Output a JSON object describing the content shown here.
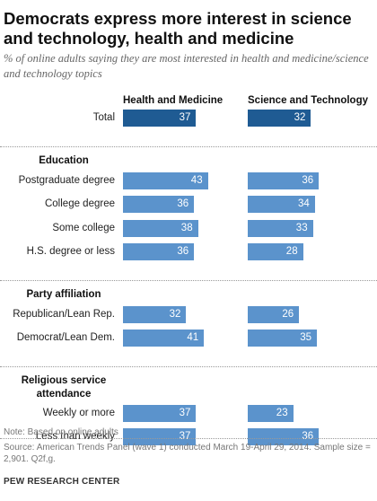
{
  "title": "Democrats express more interest in science and technology, health and medicine",
  "subtitle": "% of online adults saying they are most interested in health and medicine/science and technology  topics",
  "note": "Note: Based on online adults",
  "source": "Source: American Trends Panel (wave 1) conducted March 19-April 29, 2014. Sample size = 2,901. Q2f,g.",
  "org": "PEW RESEARCH CENTER",
  "colors": {
    "total_bar": "#1f5b93",
    "bar": "#5b93cc",
    "value_text": "#ffffff"
  },
  "chart_data": {
    "type": "bar",
    "orientation": "horizontal",
    "series": [
      {
        "name": "Health and Medicine"
      },
      {
        "name": "Science and Technology"
      }
    ],
    "groups": [
      {
        "label": "",
        "rows": [
          {
            "label": "Total",
            "values": [
              37,
              32
            ],
            "highlight": true
          }
        ]
      },
      {
        "label": "Education",
        "rows": [
          {
            "label": "Postgraduate degree",
            "values": [
              43,
              36
            ]
          },
          {
            "label": "College degree",
            "values": [
              36,
              34
            ]
          },
          {
            "label": "Some college",
            "values": [
              38,
              33
            ]
          },
          {
            "label": "H.S. degree or less",
            "values": [
              36,
              28
            ]
          }
        ]
      },
      {
        "label": "Party affiliation",
        "rows": [
          {
            "label": "Republican/Lean Rep.",
            "values": [
              32,
              26
            ]
          },
          {
            "label": "Democrat/Lean Dem.",
            "values": [
              41,
              35
            ]
          }
        ]
      },
      {
        "label": "Religious service attendance",
        "rows": [
          {
            "label": "Weekly or more",
            "values": [
              37,
              23
            ]
          },
          {
            "label": "Less than weekly",
            "values": [
              37,
              36
            ]
          }
        ]
      }
    ]
  }
}
